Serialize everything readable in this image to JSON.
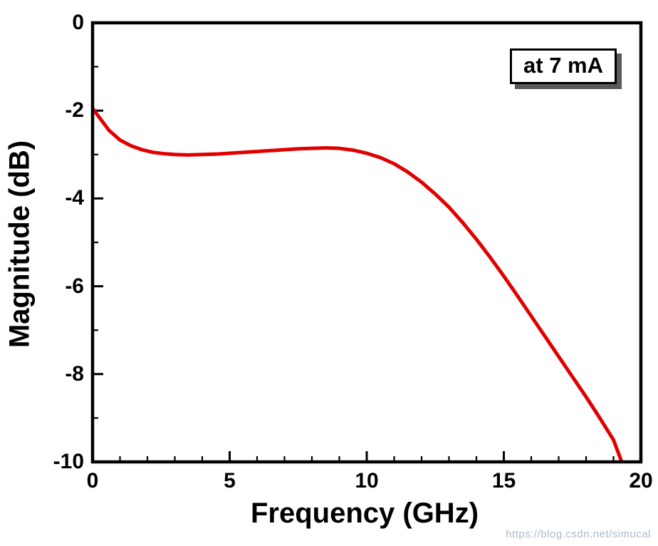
{
  "annotation": {
    "text": "at 7 mA"
  },
  "watermark": "https://blog.csdn.net/simucal",
  "chart_data": {
    "type": "line",
    "title": "",
    "xlabel": "Frequency (GHz)",
    "ylabel": "Magnitude (dB)",
    "xlim": [
      0,
      20
    ],
    "ylim": [
      -10,
      0
    ],
    "x_ticks": [
      0,
      5,
      10,
      15,
      20
    ],
    "y_ticks": [
      0,
      -2,
      -4,
      -6,
      -8,
      -10
    ],
    "x_minor_step": 1,
    "y_minor_step": 1,
    "grid": false,
    "legend_position": "inside-top-right",
    "frame_color": "#000000",
    "series": [
      {
        "name": "at 7 mA",
        "color": "#e00000",
        "x": [
          0,
          0.3,
          0.6,
          1.0,
          1.4,
          1.8,
          2.2,
          2.6,
          3.0,
          3.5,
          4.0,
          4.5,
          5.0,
          5.5,
          6.0,
          6.5,
          7.0,
          7.5,
          8.0,
          8.5,
          9.0,
          9.5,
          10.0,
          10.5,
          11.0,
          11.5,
          12.0,
          12.5,
          13.0,
          13.5,
          14.0,
          14.5,
          15.0,
          15.5,
          16.0,
          16.5,
          17.0,
          17.5,
          18.0,
          18.5,
          19.0,
          19.3
        ],
        "y": [
          -1.95,
          -2.2,
          -2.45,
          -2.67,
          -2.8,
          -2.89,
          -2.95,
          -2.98,
          -3.0,
          -3.01,
          -3.0,
          -2.99,
          -2.97,
          -2.95,
          -2.93,
          -2.91,
          -2.89,
          -2.87,
          -2.86,
          -2.85,
          -2.86,
          -2.9,
          -2.97,
          -3.07,
          -3.21,
          -3.4,
          -3.63,
          -3.9,
          -4.2,
          -4.55,
          -4.93,
          -5.34,
          -5.77,
          -6.22,
          -6.68,
          -7.14,
          -7.6,
          -8.06,
          -8.52,
          -9.0,
          -9.5,
          -10.0
        ]
      }
    ]
  }
}
